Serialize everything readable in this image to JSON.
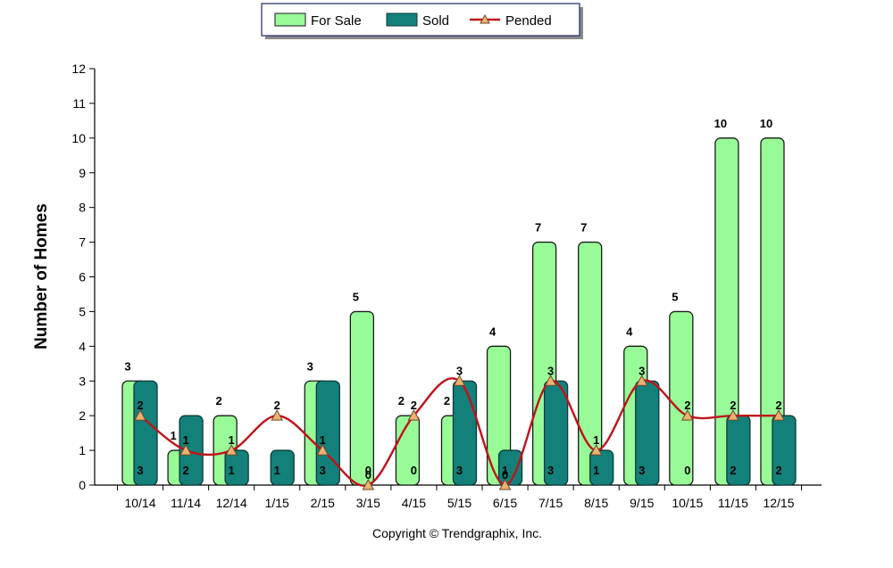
{
  "chart_data": {
    "type": "bar",
    "categories": [
      "10/14",
      "11/14",
      "12/14",
      "1/15",
      "2/15",
      "3/15",
      "4/15",
      "5/15",
      "6/15",
      "7/15",
      "8/15",
      "9/15",
      "10/15",
      "11/15",
      "12/15"
    ],
    "series": [
      {
        "name": "For Sale",
        "type": "bar",
        "color": "#98fb98",
        "values": [
          3,
          1,
          2,
          0,
          3,
          5,
          2,
          2,
          4,
          7,
          7,
          4,
          5,
          10,
          10
        ]
      },
      {
        "name": "Sold",
        "type": "bar",
        "color": "#13807a",
        "values": [
          3,
          2,
          1,
          1,
          3,
          0,
          0,
          3,
          1,
          3,
          1,
          3,
          0,
          2,
          2
        ]
      },
      {
        "name": "Pended",
        "type": "line",
        "color": "#c0121b",
        "marker_color": "#f0b070",
        "values": [
          2,
          1,
          1,
          2,
          1,
          0,
          2,
          3,
          0,
          3,
          1,
          3,
          2,
          2,
          2
        ]
      }
    ],
    "ylabel": "Number of Homes",
    "xlabel": "",
    "ylim": [
      0,
      12
    ],
    "yticks": [
      0,
      1,
      2,
      3,
      4,
      5,
      6,
      7,
      8,
      9,
      10,
      11,
      12
    ],
    "legend_position": "top-center",
    "grid": false
  },
  "footer": {
    "copyright": "Copyright © Trendgraphix, Inc."
  }
}
